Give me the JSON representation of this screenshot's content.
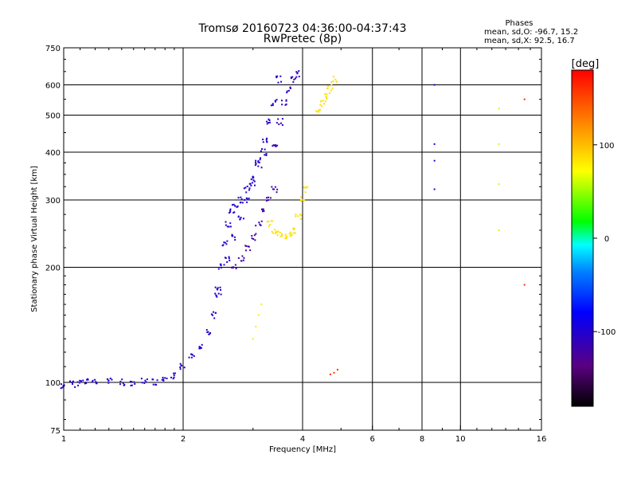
{
  "chart_data": {
    "type": "scatter",
    "title": "Tromsø 20160723 04:36:00-04:37:43",
    "subtitle": "RwPretec (8p)",
    "xlabel": "Frequency [MHz]",
    "ylabel": "Stationary phase Virtual Height [km]",
    "x_scale": "log",
    "y_scale": "log",
    "xlim": [
      1,
      16
    ],
    "ylim": [
      75,
      750
    ],
    "x_ticks": [
      1,
      2,
      4,
      6,
      8,
      10,
      16
    ],
    "x_tick_labels": [
      "1",
      "2",
      "4",
      "6",
      "8",
      "10",
      "16"
    ],
    "y_ticks": [
      75,
      100,
      200,
      300,
      400,
      500,
      600,
      750
    ],
    "y_tick_labels": [
      "75",
      "100",
      "200",
      "300",
      "400",
      "500",
      "600",
      "750"
    ],
    "grid": true,
    "legend": {
      "title": "Phases",
      "lines": [
        "mean, sd,O:  -96.7, 15.2",
        "mean, sd,X:   92.5, 16.7"
      ],
      "placement": "top-right"
    },
    "colorbar": {
      "label": "[deg]",
      "range": [
        -180,
        180
      ],
      "ticks": [
        100,
        0,
        -100
      ],
      "tick_labels": [
        "100",
        "0",
        "-100"
      ]
    },
    "traces": [
      {
        "phase": -100,
        "x": [
          1.0,
          1.05,
          1.1,
          1.15,
          1.2,
          1.3,
          1.4,
          1.5,
          1.6,
          1.7,
          1.8,
          1.9,
          2.0,
          2.1,
          2.2,
          2.3,
          2.4,
          2.45
        ],
        "y": [
          98,
          99,
          100,
          101,
          100,
          101,
          100,
          100,
          101,
          100,
          101,
          104,
          110,
          118,
          125,
          135,
          150,
          170
        ]
      },
      {
        "phase": -100,
        "x": [
          2.45,
          2.5,
          2.55,
          2.6,
          2.65,
          2.7,
          2.8,
          2.9,
          3.0,
          3.1,
          3.2
        ],
        "y": [
          175,
          200,
          230,
          260,
          280,
          290,
          300,
          320,
          340,
          370,
          400
        ]
      },
      {
        "phase": -100,
        "x": [
          2.6,
          2.7,
          2.8,
          2.9,
          3.0,
          3.1,
          3.2,
          3.3,
          3.4,
          3.5
        ],
        "y": [
          210,
          240,
          270,
          300,
          330,
          380,
          430,
          480,
          540,
          620
        ]
      },
      {
        "phase": -120,
        "x": [
          2.7,
          2.8,
          2.9,
          3.0,
          3.1,
          3.2,
          3.3,
          3.4
        ],
        "y": [
          200,
          210,
          225,
          240,
          260,
          280,
          300,
          320
        ]
      },
      {
        "phase": -110,
        "x": [
          3.4,
          3.5,
          3.6,
          3.7,
          3.8,
          3.9
        ],
        "y": [
          420,
          480,
          540,
          580,
          620,
          640
        ]
      },
      {
        "phase": 85,
        "x": [
          3.3,
          3.4,
          3.5,
          3.6,
          3.7,
          3.8,
          3.9,
          4.0,
          4.1
        ],
        "y": [
          260,
          250,
          245,
          240,
          242,
          250,
          270,
          300,
          320
        ]
      },
      {
        "phase": 85,
        "x": [
          4.4,
          4.5,
          4.6,
          4.7,
          4.8
        ],
        "y": [
          520,
          540,
          560,
          590,
          620
        ]
      },
      {
        "phase": 80,
        "x": [
          3.0,
          3.05,
          3.1,
          3.15
        ],
        "y": [
          130,
          140,
          150,
          160
        ]
      },
      {
        "phase": 160,
        "x": [
          4.7,
          4.8,
          4.9
        ],
        "y": [
          105,
          106,
          108
        ]
      },
      {
        "phase": -100,
        "x": [
          8.6,
          8.6,
          8.6,
          8.6
        ],
        "y": [
          600,
          420,
          380,
          320
        ]
      },
      {
        "phase": 60,
        "x": [
          12.5,
          12.5,
          12.5,
          12.5
        ],
        "y": [
          520,
          420,
          330,
          250
        ]
      },
      {
        "phase": 160,
        "x": [
          14.5,
          14.5
        ],
        "y": [
          550,
          180
        ]
      }
    ]
  }
}
